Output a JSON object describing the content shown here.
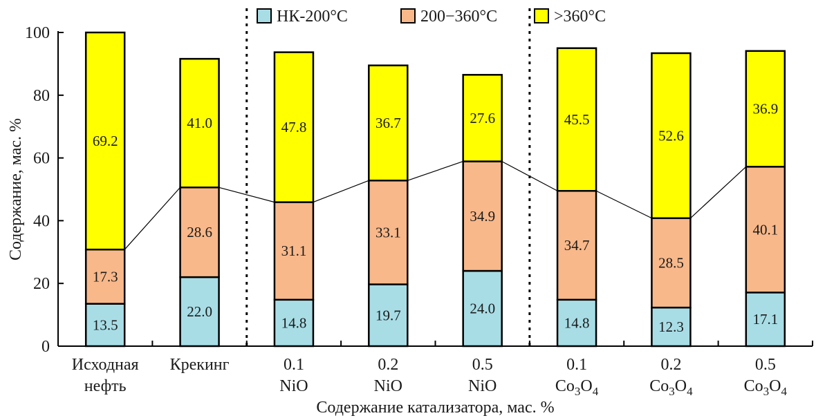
{
  "chart_data": {
    "type": "bar",
    "stacked": true,
    "xlabel": "Содержание катализатора, мас. %",
    "ylabel": "Содержание, мас. %",
    "ylim": [
      0,
      100
    ],
    "yticks": [
      0,
      20,
      40,
      60,
      80,
      100
    ],
    "grid": false,
    "legend_position": "top",
    "categories": [
      {
        "line1": "Исходная",
        "line2": "нефть",
        "sub": ""
      },
      {
        "line1": "Крекинг",
        "line2": "",
        "sub": ""
      },
      {
        "line1": "0.1",
        "line2": "NiO",
        "sub": ""
      },
      {
        "line1": "0.2",
        "line2": "NiO",
        "sub": ""
      },
      {
        "line1": "0.5",
        "line2": "NiO",
        "sub": ""
      },
      {
        "line1": "0.1",
        "line2": "Co3O4",
        "sub": "Co|3|O|4"
      },
      {
        "line1": "0.2",
        "line2": "Co3O4",
        "sub": "Co|3|O|4"
      },
      {
        "line1": "0.5",
        "line2": "Co3O4",
        "sub": "Co|3|O|4"
      }
    ],
    "series": [
      {
        "name": "НК-200°C",
        "color": "#a8dde6",
        "values": [
          13.5,
          22.0,
          14.8,
          19.7,
          24.0,
          14.8,
          12.3,
          17.1
        ]
      },
      {
        "name": "200−360°C",
        "color": "#f8b88a",
        "values": [
          17.3,
          28.6,
          31.1,
          33.1,
          34.9,
          34.7,
          28.5,
          40.1
        ]
      },
      {
        "name": ">360°C",
        "color": "#ffff00",
        "values": [
          69.2,
          41.0,
          47.8,
          36.7,
          27.6,
          45.5,
          52.6,
          36.9
        ]
      }
    ],
    "connector_line": "top of 200−360°C segment",
    "group_separators_after": [
      1,
      4
    ]
  }
}
